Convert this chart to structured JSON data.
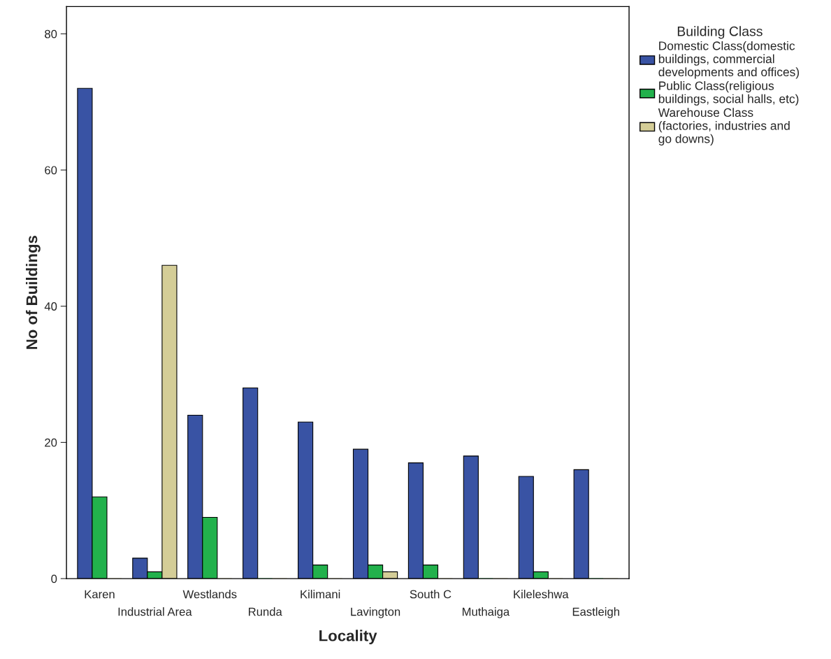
{
  "chart_data": {
    "type": "bar",
    "xlabel": "Locality",
    "ylabel": "No of Buildings",
    "legend_title": "Building Class",
    "categories": [
      "Karen",
      "Industrial Area",
      "Westlands",
      "Runda",
      "Kilimani",
      "Lavington",
      "South C",
      "Muthaiga",
      "Kileleshwa",
      "Eastleigh"
    ],
    "series": [
      {
        "name": "Domestic Class(domestic\nbuildings, commercial\ndevelopments and offices)",
        "color": "#3953a4",
        "values": [
          72,
          3,
          24,
          28,
          23,
          19,
          17,
          18,
          15,
          16
        ]
      },
      {
        "name": "Public Class(religious\nbuildings, social halls, etc)",
        "color": "#22b14c",
        "values": [
          12,
          1,
          9,
          0,
          2,
          2,
          2,
          0,
          1,
          0
        ]
      },
      {
        "name": "Warehouse Class\n(factories, industries and\ngo downs)",
        "color": "#d4cd97",
        "values": [
          0,
          46,
          0,
          0,
          0,
          1,
          0,
          0,
          0,
          0
        ]
      }
    ],
    "ylim": [
      0,
      84
    ],
    "yticks": [
      0,
      20,
      40,
      60,
      80
    ],
    "grid": false,
    "legend": "top right"
  }
}
